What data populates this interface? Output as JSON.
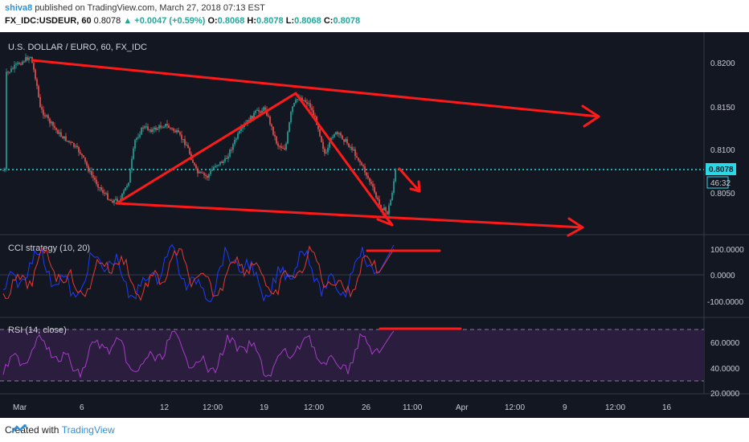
{
  "header": {
    "author": "shiva8",
    "published_text": "published on TradingView.com, March 27, 2018 07:13 EST",
    "symbol_interval": "FX_IDC:USDEUR, 60",
    "last": "0.8078",
    "change": "▲ +0.0047 (+0.59%)",
    "o_label": "O:",
    "o_value": "0.8068",
    "h_label": "H:",
    "h_value": "0.8078",
    "l_label": "L:",
    "l_value": "0.8068",
    "c_label": "C:",
    "c_value": "0.8078"
  },
  "main_pane": {
    "title": "U.S. DOLLAR / EURO, 60, FX_IDC",
    "price_ticks": [
      "0.8200",
      "0.8150",
      "0.8100",
      "0.8050"
    ],
    "current_price_label": "0.8078",
    "countdown_label": "46:32"
  },
  "cci_pane": {
    "title": "CCI strategy (10, 20)",
    "ticks": [
      "100.0000",
      "0.0000",
      "-100.0000"
    ]
  },
  "rsi_pane": {
    "title": "RSI (14, close)",
    "ticks": [
      "60.0000",
      "40.0000",
      "20.0000"
    ]
  },
  "time_axis": [
    "Mar",
    "6",
    "12",
    "12:00",
    "19",
    "12:00",
    "26",
    "11:00",
    "Apr",
    "12:00",
    "9",
    "12:00",
    "16"
  ],
  "colors": {
    "background": "#131722",
    "up_candle": "#26a69a",
    "down_candle": "#ef5350",
    "annotation": "#ff1a1a",
    "price_line": "#2ad8e8",
    "cci_line": "#e53935",
    "cci_line_b": "#1e3cff",
    "rsi_line": "#a63dc8",
    "rsi_band": "#2b1d3d"
  },
  "footer": {
    "created_with": "Created with",
    "brand": "TradingView"
  }
}
